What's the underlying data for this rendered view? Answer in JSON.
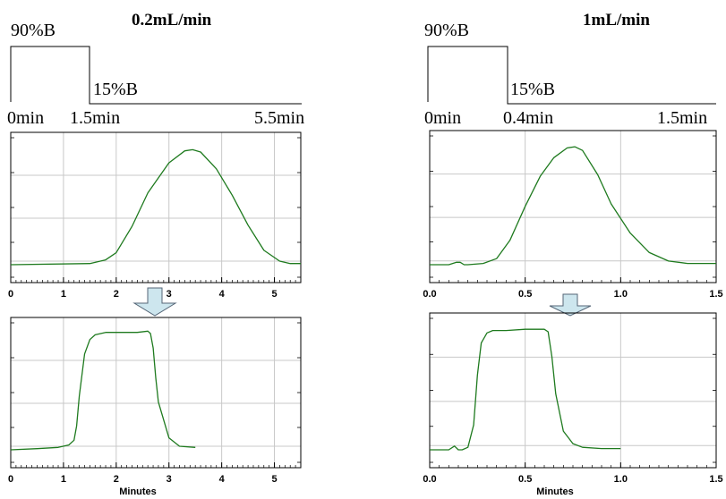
{
  "colors": {
    "trace": "#1e7a1e",
    "grid": "#c8c8c8",
    "axis": "#000000",
    "arrow_fill": "#cde6ee",
    "arrow_stroke": "#556677"
  },
  "left": {
    "flow_rate": "0.2mL/min",
    "high_b": "90%B",
    "low_b": "15%B",
    "time_start": "0min",
    "time_step": "1.5min",
    "time_end": "5.5min",
    "arrow_icon": "down-arrow-icon"
  },
  "right": {
    "flow_rate": "1mL/min",
    "high_b": "90%B",
    "low_b": "15%B",
    "time_start": "0min",
    "time_step": "0.4min",
    "time_end": "1.5min",
    "arrow_icon": "down-arrow-icon"
  },
  "x_axis_title": "Minutes",
  "chart_data": [
    {
      "type": "line",
      "xlim": [
        0,
        5.5
      ],
      "ylim": [
        0,
        1
      ],
      "x_ticks": [
        "0",
        "1",
        "2",
        "3",
        "4",
        "5"
      ],
      "xlabel": "",
      "series": [
        {
          "x": [
            0,
            1.5,
            1.8,
            2.0,
            2.3,
            2.6,
            3.0,
            3.3,
            3.45,
            3.6,
            3.9,
            4.2,
            4.5,
            4.8,
            5.1,
            5.3,
            5.5
          ],
          "y": [
            0.0,
            0.01,
            0.04,
            0.1,
            0.32,
            0.6,
            0.85,
            0.95,
            0.96,
            0.94,
            0.8,
            0.58,
            0.33,
            0.12,
            0.03,
            0.01,
            0.01
          ]
        }
      ]
    },
    {
      "type": "line",
      "xlim": [
        0,
        5.5
      ],
      "ylim": [
        0,
        1
      ],
      "x_ticks": [
        "0",
        "1",
        "2",
        "3",
        "4",
        "5"
      ],
      "xlabel": "Minutes",
      "series": [
        {
          "x": [
            0,
            0.5,
            0.9,
            1.1,
            1.2,
            1.25,
            1.3,
            1.4,
            1.5,
            1.6,
            1.8,
            2.0,
            2.2,
            2.4,
            2.6,
            2.65,
            2.7,
            2.75,
            2.8,
            3.0,
            3.2,
            3.5
          ],
          "y": [
            0.0,
            0.01,
            0.02,
            0.04,
            0.08,
            0.2,
            0.45,
            0.8,
            0.92,
            0.96,
            0.98,
            0.98,
            0.98,
            0.98,
            0.99,
            0.97,
            0.85,
            0.6,
            0.4,
            0.1,
            0.03,
            0.02
          ]
        }
      ]
    },
    {
      "type": "line",
      "xlim": [
        0,
        1.5
      ],
      "ylim": [
        0,
        1
      ],
      "x_ticks": [
        "0.0",
        "0.5",
        "1.0",
        "1.5"
      ],
      "xlabel": "",
      "series": [
        {
          "x": [
            0,
            0.1,
            0.14,
            0.16,
            0.18,
            0.2,
            0.28,
            0.35,
            0.42,
            0.5,
            0.58,
            0.65,
            0.72,
            0.76,
            0.8,
            0.88,
            0.95,
            1.05,
            1.15,
            1.25,
            1.35,
            1.5
          ],
          "y": [
            0.0,
            0.0,
            0.02,
            0.02,
            0.0,
            0.0,
            0.01,
            0.05,
            0.2,
            0.48,
            0.73,
            0.88,
            0.96,
            0.97,
            0.94,
            0.74,
            0.5,
            0.26,
            0.1,
            0.03,
            0.01,
            0.01
          ]
        }
      ]
    },
    {
      "type": "line",
      "xlim": [
        0,
        1.5
      ],
      "ylim": [
        0,
        1
      ],
      "x_ticks": [
        "0.0",
        "0.5",
        "1.0",
        "1.5"
      ],
      "xlabel": "Minutes",
      "series": [
        {
          "x": [
            0,
            0.1,
            0.13,
            0.15,
            0.17,
            0.2,
            0.23,
            0.25,
            0.27,
            0.3,
            0.33,
            0.4,
            0.5,
            0.6,
            0.62,
            0.64,
            0.66,
            0.7,
            0.75,
            0.8,
            0.9,
            1.0
          ],
          "y": [
            0.0,
            0.0,
            0.03,
            0.0,
            0.0,
            0.02,
            0.2,
            0.6,
            0.86,
            0.94,
            0.96,
            0.96,
            0.97,
            0.97,
            0.95,
            0.75,
            0.45,
            0.15,
            0.05,
            0.02,
            0.01,
            0.01
          ]
        }
      ]
    }
  ]
}
